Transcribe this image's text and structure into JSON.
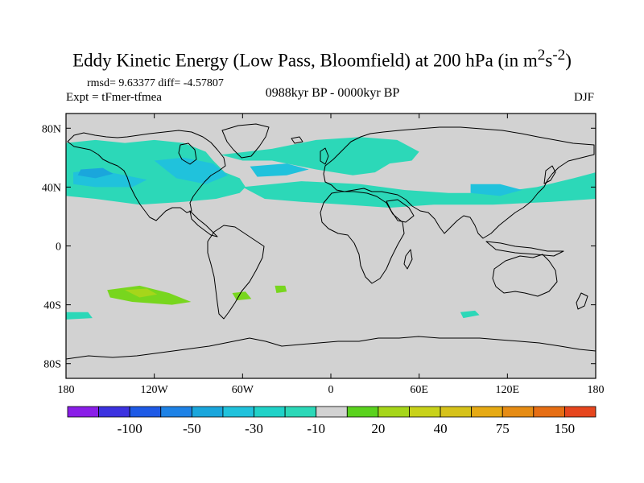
{
  "header": {
    "title_main": "Eddy Kinetic Energy (Low Pass, Bloomfield) at 200 hPa (in m",
    "title_sup1": "2",
    "title_mid": "s",
    "title_sup2": "-2",
    "title_end": ")",
    "stats": "rmsd= 9.63377 diff= -4.57807",
    "experiment": "Expt = tFmer-tfmea",
    "period": "0988kyr BP - 0000kyr BP",
    "season": "DJF"
  },
  "colors": {
    "land_ocean_zero": "#d2d2d2",
    "coastline": "#000000",
    "teal": "#2cd8b8",
    "light_blue": "#20c2dc",
    "blue": "#1aa6dc",
    "green": "#78d61e",
    "lime": "#a6d61a"
  },
  "chart_data": {
    "type": "heatmap",
    "title": "Eddy Kinetic Energy (Low Pass, Bloomfield) at 200 hPa (in m2s-2)",
    "projection": "cylindrical-equidistant",
    "xlim": [
      -180,
      180
    ],
    "ylim": [
      -90,
      90
    ],
    "x_ticks": [
      {
        "value": -180,
        "label": "180"
      },
      {
        "value": -120,
        "label": "120W"
      },
      {
        "value": -60,
        "label": "60W"
      },
      {
        "value": 0,
        "label": "0"
      },
      {
        "value": 60,
        "label": "60E"
      },
      {
        "value": 120,
        "label": "120E"
      },
      {
        "value": 180,
        "label": "180"
      }
    ],
    "y_ticks": [
      {
        "value": 80,
        "label": "80N"
      },
      {
        "value": 40,
        "label": "40N"
      },
      {
        "value": 0,
        "label": "0"
      },
      {
        "value": -40,
        "label": "40S"
      },
      {
        "value": -80,
        "label": "80S"
      }
    ],
    "colorbar": {
      "colors": [
        "#8a1ee8",
        "#3c32e0",
        "#1e5ae6",
        "#1e82e6",
        "#1aa6dc",
        "#20c2dc",
        "#20d2c8",
        "#2cd8b8",
        "#d2d2d2",
        "#5ad21e",
        "#a6d61a",
        "#c8d21a",
        "#d6c21a",
        "#e6aa14",
        "#e68c14",
        "#e66e14",
        "#e6461e"
      ],
      "labels": [
        {
          "after_box": 2,
          "text": "-100"
        },
        {
          "after_box": 4,
          "text": "-50"
        },
        {
          "after_box": 6,
          "text": "-30"
        },
        {
          "after_box": 8,
          "text": "-10"
        },
        {
          "after_box": 10,
          "text": "20"
        },
        {
          "after_box": 12,
          "text": "40"
        },
        {
          "after_box": 14,
          "text": "75"
        },
        {
          "after_box": 16,
          "text": "150"
        }
      ]
    },
    "anomaly_regions": [
      {
        "name": "nh-storm-band-pacific",
        "level": "-10",
        "color": "#2cd8b8",
        "points": [
          [
            -180,
            70
          ],
          [
            -160,
            72
          ],
          [
            -140,
            70
          ],
          [
            -120,
            72
          ],
          [
            -100,
            70
          ],
          [
            -85,
            64
          ],
          [
            -80,
            58
          ],
          [
            -72,
            50
          ],
          [
            -62,
            46
          ],
          [
            -58,
            40
          ],
          [
            -62,
            36
          ],
          [
            -78,
            32
          ],
          [
            -100,
            30
          ],
          [
            -130,
            28
          ],
          [
            -160,
            32
          ],
          [
            -180,
            34
          ]
        ]
      },
      {
        "name": "nh-storm-band-atlantic",
        "level": "-10",
        "color": "#2cd8b8",
        "points": [
          [
            -75,
            62
          ],
          [
            -40,
            66
          ],
          [
            -10,
            72
          ],
          [
            20,
            74
          ],
          [
            45,
            72
          ],
          [
            60,
            64
          ],
          [
            55,
            58
          ],
          [
            40,
            56
          ],
          [
            30,
            50
          ],
          [
            15,
            48
          ],
          [
            -10,
            52
          ],
          [
            -40,
            58
          ],
          [
            -60,
            58
          ]
        ]
      },
      {
        "name": "nh-storm-band-eurasia",
        "level": "-10",
        "color": "#2cd8b8",
        "points": [
          [
            -60,
            40
          ],
          [
            -20,
            44
          ],
          [
            20,
            42
          ],
          [
            50,
            38
          ],
          [
            80,
            36
          ],
          [
            110,
            36
          ],
          [
            140,
            40
          ],
          [
            165,
            46
          ],
          [
            180,
            50
          ],
          [
            180,
            32
          ],
          [
            150,
            30
          ],
          [
            110,
            28
          ],
          [
            70,
            28
          ],
          [
            40,
            26
          ],
          [
            10,
            28
          ],
          [
            -20,
            30
          ],
          [
            -45,
            32
          ]
        ]
      },
      {
        "name": "nh-north-pacific-blue",
        "level": "-30",
        "color": "#20c2dc",
        "points": [
          [
            -175,
            50
          ],
          [
            -160,
            52
          ],
          [
            -140,
            48
          ],
          [
            -125,
            45
          ],
          [
            -135,
            40
          ],
          [
            -160,
            40
          ],
          [
            -175,
            42
          ]
        ]
      },
      {
        "name": "nh-north-america-blue",
        "level": "-30",
        "color": "#20c2dc",
        "points": [
          [
            -120,
            58
          ],
          [
            -100,
            60
          ],
          [
            -80,
            56
          ],
          [
            -70,
            48
          ],
          [
            -85,
            42
          ],
          [
            -105,
            46
          ]
        ]
      },
      {
        "name": "nh-atlantic-blue",
        "level": "-30",
        "color": "#20c2dc",
        "points": [
          [
            -55,
            54
          ],
          [
            -30,
            56
          ],
          [
            -15,
            52
          ],
          [
            -30,
            48
          ],
          [
            -50,
            47
          ]
        ]
      },
      {
        "name": "nh-asia-blue",
        "level": "-30",
        "color": "#20c2dc",
        "points": [
          [
            95,
            42
          ],
          [
            115,
            42
          ],
          [
            130,
            38
          ],
          [
            115,
            34
          ],
          [
            95,
            36
          ]
        ]
      },
      {
        "name": "nh-aleutian-core",
        "level": "-50",
        "color": "#1aa6dc",
        "points": [
          [
            -170,
            52
          ],
          [
            -155,
            53
          ],
          [
            -148,
            49
          ],
          [
            -160,
            46
          ],
          [
            -172,
            48
          ]
        ]
      },
      {
        "name": "sh-teal-patch-west",
        "level": "-10",
        "color": "#2cd8b8",
        "points": [
          [
            -180,
            -45
          ],
          [
            -165,
            -45
          ],
          [
            -162,
            -49
          ],
          [
            -180,
            -50
          ]
        ]
      },
      {
        "name": "sh-teal-patch-east",
        "level": "-10",
        "color": "#2cd8b8",
        "points": [
          [
            88,
            -45
          ],
          [
            98,
            -44
          ],
          [
            101,
            -47
          ],
          [
            90,
            -49
          ]
        ]
      },
      {
        "name": "sh-pacific-green",
        "level": "20",
        "color": "#78d61e",
        "points": [
          [
            -152,
            -30
          ],
          [
            -130,
            -27
          ],
          [
            -110,
            -32
          ],
          [
            -95,
            -38
          ],
          [
            -108,
            -40
          ],
          [
            -135,
            -38
          ],
          [
            -150,
            -35
          ]
        ]
      },
      {
        "name": "sh-pacific-lime",
        "level": "40",
        "color": "#a6d61a",
        "points": [
          [
            -140,
            -30
          ],
          [
            -125,
            -29
          ],
          [
            -118,
            -33
          ],
          [
            -130,
            -35
          ]
        ]
      },
      {
        "name": "sh-atlantic-green",
        "level": "20",
        "color": "#78d61e",
        "points": [
          [
            -67,
            -32
          ],
          [
            -58,
            -31
          ],
          [
            -54,
            -36
          ],
          [
            -64,
            -37
          ]
        ]
      },
      {
        "name": "sh-south-atlantic-green",
        "level": "20",
        "color": "#78d61e",
        "points": [
          [
            -38,
            -27
          ],
          [
            -31,
            -27
          ],
          [
            -30,
            -31
          ],
          [
            -37,
            -32
          ]
        ]
      }
    ]
  }
}
